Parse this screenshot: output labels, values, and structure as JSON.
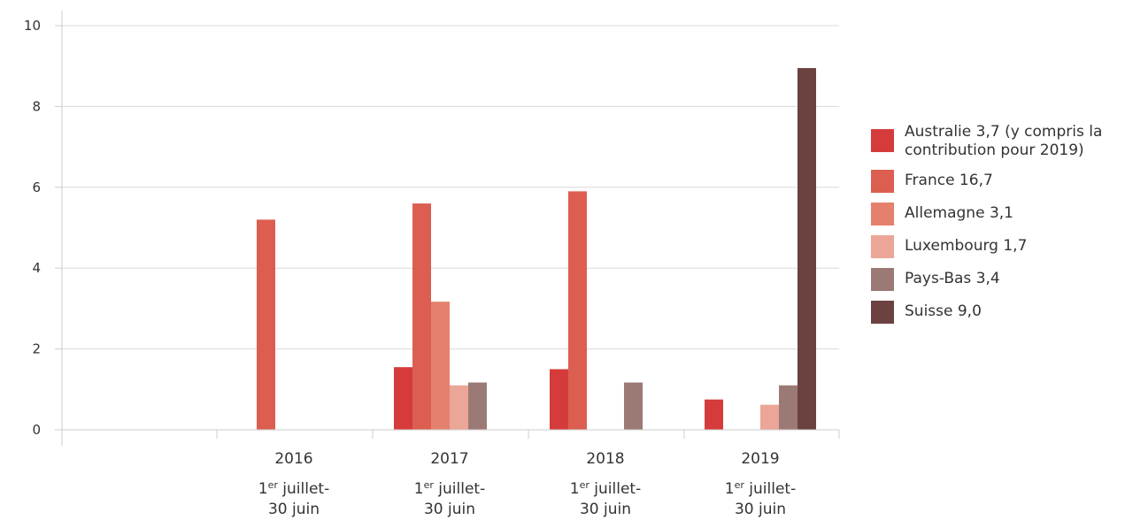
{
  "chart_data": {
    "type": "bar",
    "categories": [
      {
        "year": "2016",
        "sup_prefix": "1",
        "sup": "er",
        "line1": " juillet-",
        "line2": "30 juin"
      },
      {
        "year": "2017",
        "sup_prefix": "1",
        "sup": "er",
        "line1": " juillet-",
        "line2": "30 juin"
      },
      {
        "year": "2018",
        "sup_prefix": "1",
        "sup": "er",
        "line1": " juillet-",
        "line2": "30 juin"
      },
      {
        "year": "2019",
        "sup_prefix": "1",
        "sup": "er",
        "line1": " juillet-",
        "line2": "30 juin"
      }
    ],
    "series": [
      {
        "name": "Australie 3,7 (y compris la contribution pour 2019)",
        "name_lines": [
          "Australie 3,7 (y compris la",
          "contribution pour 2019)"
        ],
        "color": "#d63b3b",
        "values": [
          0,
          1.55,
          1.5,
          0.75
        ]
      },
      {
        "name": "France 16,7",
        "name_lines": [
          "France 16,7"
        ],
        "color": "#dc5e50",
        "values": [
          5.2,
          5.6,
          5.9,
          0
        ]
      },
      {
        "name": "Allemagne 3,1",
        "name_lines": [
          "Allemagne 3,1"
        ],
        "color": "#e5806e",
        "values": [
          0,
          3.17,
          0,
          0
        ]
      },
      {
        "name": "Luxembourg 1,7",
        "name_lines": [
          "Luxembourg 1,7"
        ],
        "color": "#eba697",
        "values": [
          0,
          1.1,
          0,
          0.62
        ]
      },
      {
        "name": "Pays-Bas 3,4",
        "name_lines": [
          "Pays-Bas 3,4"
        ],
        "color": "#9b7a76",
        "values": [
          0,
          1.17,
          1.17,
          1.1
        ]
      },
      {
        "name": "Suisse 9,0",
        "name_lines": [
          "Suisse 9,0"
        ],
        "color": "#6b423f",
        "values": [
          0,
          0,
          0,
          8.95
        ]
      }
    ],
    "yticks": [
      "0",
      "2",
      "4",
      "6",
      "8",
      "10"
    ],
    "ylim": [
      0,
      10
    ],
    "grid": true,
    "legend_position": "right"
  }
}
